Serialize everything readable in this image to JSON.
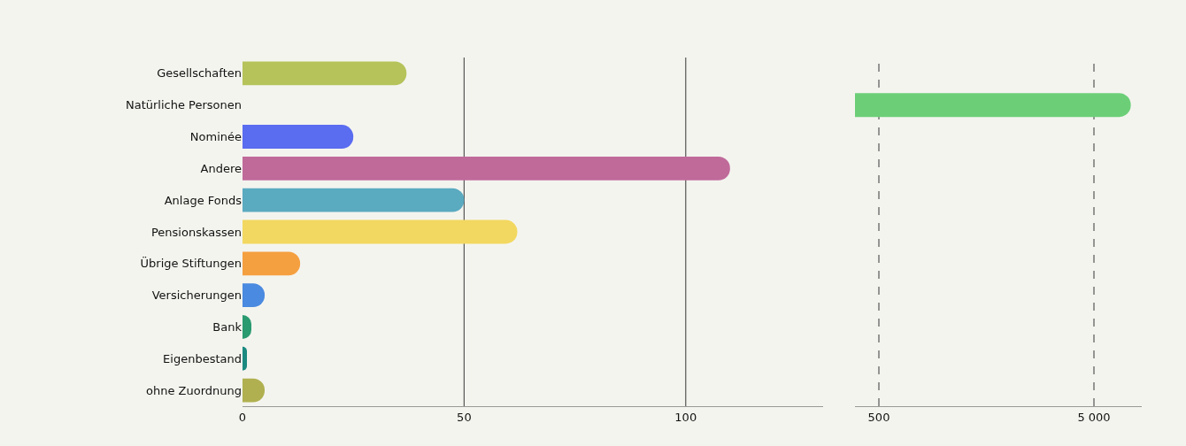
{
  "chart_data": [
    {
      "type": "bar",
      "orientation": "horizontal",
      "categories": [
        "Gesellschaften",
        "Natürliche Personen",
        "Nominée",
        "Andere",
        "Anlage Fonds",
        "Pensionskassen",
        "Übrige Stiftungen",
        "Versicherungen",
        "Bank",
        "Eigenbestand",
        "ohne Zuordnung"
      ],
      "values": [
        37,
        null,
        25,
        110,
        50,
        62,
        13,
        5,
        2,
        1,
        5
      ],
      "colors": [
        "#b5c35a",
        "#1f8a7a",
        "#5a6cf0",
        "#c06a9a",
        "#5aaac0",
        "#f2d860",
        "#f5a040",
        "#4a8ae0",
        "#2a9a70",
        "#1a8a80",
        "#b0b050"
      ],
      "xlim": [
        0,
        131
      ],
      "xticks": [
        0,
        50,
        100
      ],
      "grid": "x"
    },
    {
      "type": "bar",
      "orientation": "horizontal",
      "categories": [
        null,
        null,
        null,
        null,
        null,
        null,
        null,
        null,
        null,
        null,
        null
      ],
      "values": [
        null,
        5770,
        null,
        null,
        null,
        null,
        null,
        null,
        null,
        null,
        null
      ],
      "colors": [
        "#b5c35a",
        "#6ccf78",
        "#5a6cf0",
        "#c06a9a",
        "#5aaac0",
        "#f2d860",
        "#f5a040",
        "#4a8ae0",
        "#2a9a70",
        "#1a8a80",
        "#b0b050"
      ],
      "xlim": [
        0,
        6000
      ],
      "xticks": [
        500,
        {
          "value": 5000,
          "label": "5 000"
        }
      ],
      "grid": "x",
      "tick_labels": "x"
    }
  ]
}
